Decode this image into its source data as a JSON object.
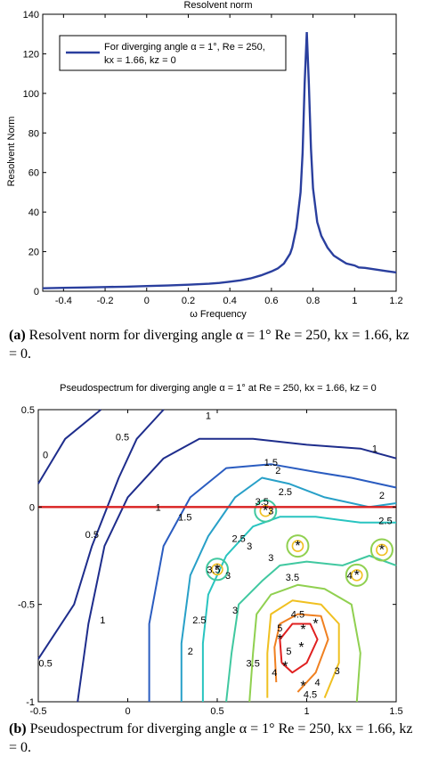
{
  "chart_data": [
    {
      "type": "line",
      "title": "Resolvent norm",
      "xlabel": "ω Frequency",
      "ylabel": "Resolvent Norm",
      "xlim": [
        -0.5,
        1.2
      ],
      "ylim": [
        0,
        140
      ],
      "xticks": [
        -0.4,
        -0.2,
        0,
        0.2,
        0.4,
        0.6,
        0.8,
        1,
        1.2
      ],
      "xtick_labels": [
        "-0.4",
        "-0.2",
        "0",
        "0.2",
        "0.4",
        "0.6",
        "0.8",
        "1",
        "1.2"
      ],
      "yticks": [
        0,
        20,
        40,
        60,
        80,
        100,
        120,
        140
      ],
      "ytick_labels": [
        "0",
        "20",
        "40",
        "60",
        "80",
        "100",
        "120",
        "140"
      ],
      "grid": false,
      "legend_position": "top-left",
      "legend_lines": [
        "For diverging angle α = 1°, Re = 250,",
        "kx = 1.66, kz = 0"
      ],
      "series": [
        {
          "name": "For diverging angle α = 1°, Re = 250, kx = 1.66, kz = 0",
          "color": "#2a3f9e",
          "x": [
            -0.5,
            -0.4,
            -0.3,
            -0.2,
            -0.1,
            0,
            0.1,
            0.2,
            0.3,
            0.35,
            0.4,
            0.45,
            0.5,
            0.55,
            0.6,
            0.63,
            0.66,
            0.69,
            0.7,
            0.72,
            0.74,
            0.75,
            0.76,
            0.77,
            0.78,
            0.79,
            0.8,
            0.82,
            0.84,
            0.87,
            0.9,
            0.93,
            0.96,
            1.0,
            1.02,
            1.05,
            1.1,
            1.15,
            1.2
          ],
          "y": [
            1.5,
            1.7,
            1.9,
            2.1,
            2.3,
            2.6,
            2.9,
            3.3,
            3.8,
            4.2,
            4.8,
            5.5,
            6.5,
            8,
            10,
            11.5,
            14,
            19,
            22,
            32,
            50,
            70,
            105,
            131,
            105,
            72,
            52,
            35,
            28,
            22,
            18,
            16,
            14,
            13,
            12,
            11.8,
            11,
            10.2,
            9.5
          ]
        }
      ]
    },
    {
      "type": "contour",
      "title": "Pseudospectrum for diverging angle α = 1° at Re = 250, kx = 1.66, kz = 0",
      "xlim": [
        -0.5,
        1.5
      ],
      "ylim": [
        -1,
        0.5
      ],
      "xticks": [
        -0.5,
        0,
        0.5,
        1,
        1.5
      ],
      "xtick_labels": [
        "-0.5",
        "0",
        "0.5",
        "1",
        "1.5"
      ],
      "yticks": [
        -1,
        -0.5,
        0,
        0.5
      ],
      "ytick_labels": [
        "-1",
        "-0.5",
        "0",
        "0.5"
      ],
      "contour_levels": [
        0,
        0.5,
        1,
        1.5,
        2,
        2.5,
        3,
        3.5,
        4,
        4.5,
        5
      ],
      "contour_labels": [
        {
          "text": "0",
          "x": -0.46,
          "y": 0.27
        },
        {
          "text": "0.5",
          "x": -0.03,
          "y": 0.36
        },
        {
          "text": "1",
          "x": 0.45,
          "y": 0.47
        },
        {
          "text": "1.5",
          "x": 0.8,
          "y": 0.23
        },
        {
          "text": "1",
          "x": 1.38,
          "y": 0.3
        },
        {
          "text": "2",
          "x": 0.84,
          "y": 0.19
        },
        {
          "text": "1",
          "x": 0.17,
          "y": -0.0
        },
        {
          "text": "1.5",
          "x": 0.32,
          "y": -0.05
        },
        {
          "text": "3.5",
          "x": 0.75,
          "y": 0.03
        },
        {
          "text": "2.5",
          "x": 0.88,
          "y": 0.08
        },
        {
          "text": "3",
          "x": 0.8,
          "y": -0.02
        },
        {
          "text": "2",
          "x": 1.42,
          "y": 0.06
        },
        {
          "text": "2.5",
          "x": 1.44,
          "y": -0.07
        },
        {
          "text": "0.5",
          "x": -0.2,
          "y": -0.14
        },
        {
          "text": "2.5",
          "x": 0.62,
          "y": -0.16
        },
        {
          "text": "3",
          "x": 0.68,
          "y": -0.2
        },
        {
          "text": "3.5",
          "x": 0.92,
          "y": -0.36
        },
        {
          "text": "3",
          "x": 0.8,
          "y": -0.26
        },
        {
          "text": "3.5",
          "x": 0.48,
          "y": -0.32
        },
        {
          "text": "3",
          "x": 0.56,
          "y": -0.35
        },
        {
          "text": "4",
          "x": 1.24,
          "y": -0.35
        },
        {
          "text": "1",
          "x": -0.14,
          "y": -0.58
        },
        {
          "text": "2.5",
          "x": 0.4,
          "y": -0.58
        },
        {
          "text": "3",
          "x": 0.6,
          "y": -0.53
        },
        {
          "text": "4.5",
          "x": 0.95,
          "y": -0.55
        },
        {
          "text": "5",
          "x": 0.85,
          "y": -0.62
        },
        {
          "text": "2",
          "x": 0.35,
          "y": -0.74
        },
        {
          "text": "3.5",
          "x": 0.7,
          "y": -0.8
        },
        {
          "text": "4",
          "x": 0.82,
          "y": -0.85
        },
        {
          "text": "4",
          "x": 1.06,
          "y": -0.9
        },
        {
          "text": "4.5",
          "x": 1.02,
          "y": -0.96
        },
        {
          "text": "5",
          "x": 0.9,
          "y": -0.74
        },
        {
          "text": "3",
          "x": 1.17,
          "y": -0.84
        },
        {
          "text": "0.5",
          "x": -0.46,
          "y": -0.8
        }
      ],
      "eigenvalues": [
        {
          "x": 0.77,
          "y": -0.02
        },
        {
          "x": 0.95,
          "y": -0.2
        },
        {
          "x": 0.5,
          "y": -0.32
        },
        {
          "x": 1.42,
          "y": -0.22
        },
        {
          "x": 1.28,
          "y": -0.35
        },
        {
          "x": 1.05,
          "y": -0.6
        },
        {
          "x": 0.98,
          "y": -0.63
        },
        {
          "x": 0.85,
          "y": -0.68
        },
        {
          "x": 0.97,
          "y": -0.72
        },
        {
          "x": 0.88,
          "y": -0.82
        },
        {
          "x": 0.98,
          "y": -0.92
        }
      ],
      "reference_line": {
        "y": 0,
        "color": "#d92020"
      },
      "colors": {
        "low": "#1e2d8c",
        "mid": "#28c4c0",
        "high": "#f0c020",
        "peak": "#e02020"
      }
    }
  ],
  "captions": {
    "a": {
      "label": "(a)",
      "text": "Resolvent norm for diverging angle α = 1° Re = 250, kx = 1.66, kz = 0."
    },
    "b": {
      "label": "(b)",
      "text": "Pseudospectrum for diverging angle α = 1° Re = 250, kx = 1.66, kz = 0."
    }
  }
}
